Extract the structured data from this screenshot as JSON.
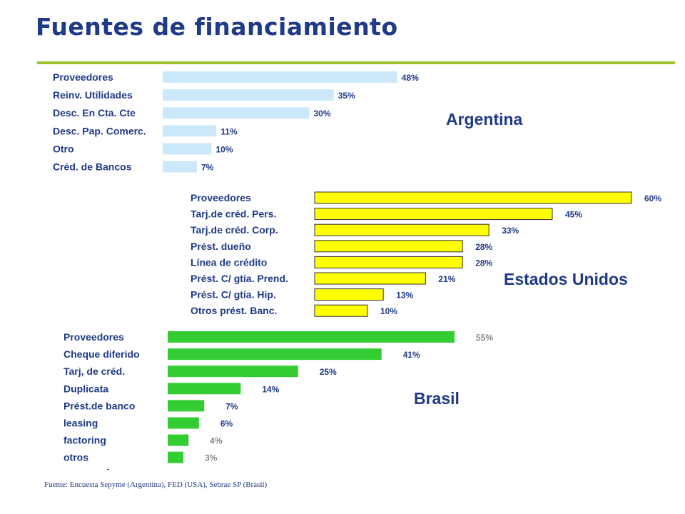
{
  "page": {
    "title": "Fuentes de financiamiento",
    "source": "Fuente: Encuesta Sepyme (Argentina), FED (USA),  Sebrae SP (Brasil)"
  },
  "colors": {
    "title": "#1f3a87",
    "rule": "#9ec32a"
  },
  "chart_data": [
    {
      "type": "bar",
      "orientation": "horizontal",
      "title": "Argentina",
      "categories": [
        "Proveedores",
        "Reinv. Utilidades",
        "Desc. En Cta. Cte",
        "Desc. Pap. Comerc.",
        "Otro",
        "Créd. de Bancos"
      ],
      "values": [
        48,
        35,
        30,
        11,
        10,
        7
      ],
      "labels": [
        "48%",
        "35%",
        "30%",
        "11%",
        "10%",
        "7%"
      ],
      "unit": "%",
      "color": "#cce9fb",
      "stroke": "#cce9fb",
      "grid": false,
      "legend": false
    },
    {
      "type": "bar",
      "orientation": "horizontal",
      "title": "Estados Unidos",
      "categories": [
        "Proveedores",
        "Tarj.de créd. Pers.",
        "Tarj.de créd. Corp.",
        "Prést. dueño",
        "Línea de crédito",
        "Prést. C/ gtía. Prend.",
        "Prést. C/  gtía. Hip.",
        "Otros prést. Banc."
      ],
      "values": [
        60,
        45,
        33,
        28,
        28,
        21,
        13,
        10
      ],
      "labels": [
        "60%",
        "45%",
        "33%",
        "28%",
        "28%",
        "21%",
        "13%",
        "10%"
      ],
      "unit": "%",
      "color": "#ffff00",
      "stroke": "#333333",
      "grid": false,
      "legend": false
    },
    {
      "type": "bar",
      "orientation": "horizontal",
      "title": "Brasil",
      "categories": [
        "Proveedores",
        "Cheque diferido",
        "Tarj, de créd.",
        "Duplicata",
        "Prést.de banco",
        "leasing",
        "factoring",
        "otros"
      ],
      "values": [
        55,
        41,
        25,
        14,
        7,
        6,
        4,
        3
      ],
      "labels": [
        "55%",
        "41%",
        "25%",
        "14%",
        "7%",
        "6%",
        "4%",
        "3%"
      ],
      "unit": "%",
      "color": "#33cc33",
      "stroke": "#33cc33",
      "grid": false,
      "legend": false
    }
  ]
}
